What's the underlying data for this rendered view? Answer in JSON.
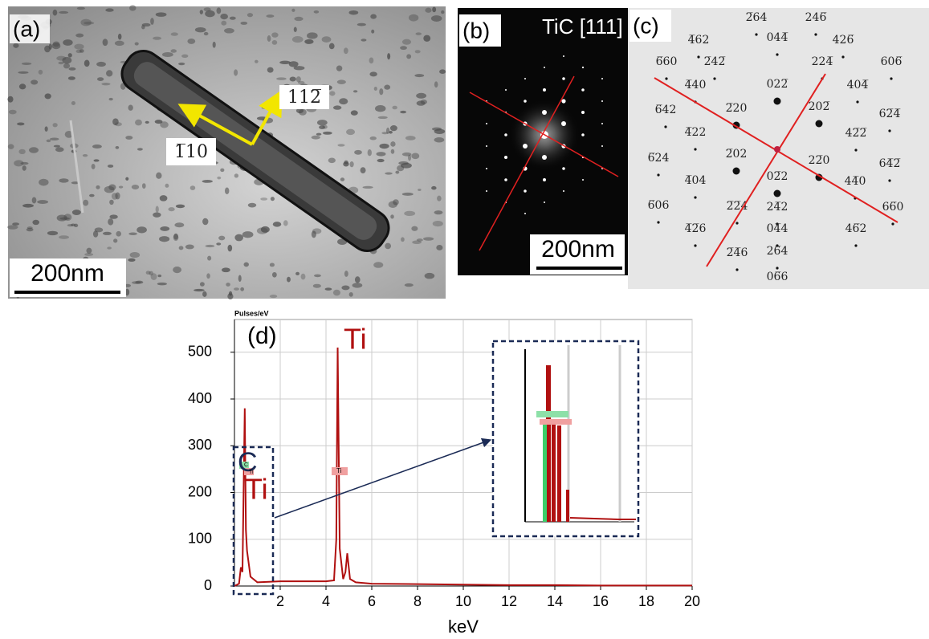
{
  "panels": [
    {
      "label": "(a)",
      "scale_bar": "200nm",
      "directions": [
        "112̅",
        "1̅10"
      ]
    },
    {
      "label": "(b)",
      "zone": "TiC [111]",
      "scale_bar": "200nm"
    },
    {
      "label": "(c)",
      "spots": [
        "2̅64",
        "246̅",
        "4̅62",
        "044̅",
        "426̅",
        "6̅60",
        "2̅42̅",
        "224̅",
        "606̅",
        "022̅",
        "4̅40",
        "404̅",
        "6̅42",
        "2̅20",
        "202̅",
        "62̅4̅",
        "4̅22",
        "42̅2̅",
        "6̅24",
        "2̅02",
        "22̅0",
        "64̅2̅",
        "4̅04",
        "02̅2",
        "44̅0",
        "6̅06",
        "2̅2̅4",
        "24̅2",
        "66̅0",
        "4̅2̅6",
        "04̅4",
        "46̅2",
        "2̅4̅6",
        "26̅4",
        "06̅6"
      ]
    }
  ],
  "chart_data": {
    "type": "line",
    "label": "(d)",
    "y_unit": "Pulses/eV",
    "xlabel": "keV",
    "x": [
      0,
      0.2,
      0.28,
      0.35,
      0.45,
      0.5,
      0.55,
      0.7,
      1,
      2,
      3,
      4,
      4.35,
      4.45,
      4.51,
      4.6,
      4.75,
      4.85,
      4.93,
      5.05,
      5.3,
      6,
      8,
      10,
      12,
      14,
      16,
      18,
      20
    ],
    "series": [
      {
        "name": "Spectrum",
        "color": "#b01010",
        "values": [
          0,
          5,
          40,
          30,
          380,
          120,
          75,
          20,
          8,
          10,
          10,
          10,
          12,
          100,
          510,
          80,
          15,
          30,
          70,
          15,
          8,
          5,
          4,
          3,
          2,
          2,
          1,
          1,
          1
        ]
      }
    ],
    "xlim": [
      0,
      20
    ],
    "ylim": [
      0,
      570
    ],
    "xticks": [
      2,
      4,
      6,
      8,
      10,
      12,
      14,
      16,
      18,
      20
    ],
    "yticks": [
      0,
      100,
      200,
      300,
      400,
      500
    ],
    "grid": true,
    "annotations": [
      "Ti",
      "C",
      "Ti",
      "C",
      "Ti",
      "C",
      "Ti",
      "Ti"
    ]
  }
}
